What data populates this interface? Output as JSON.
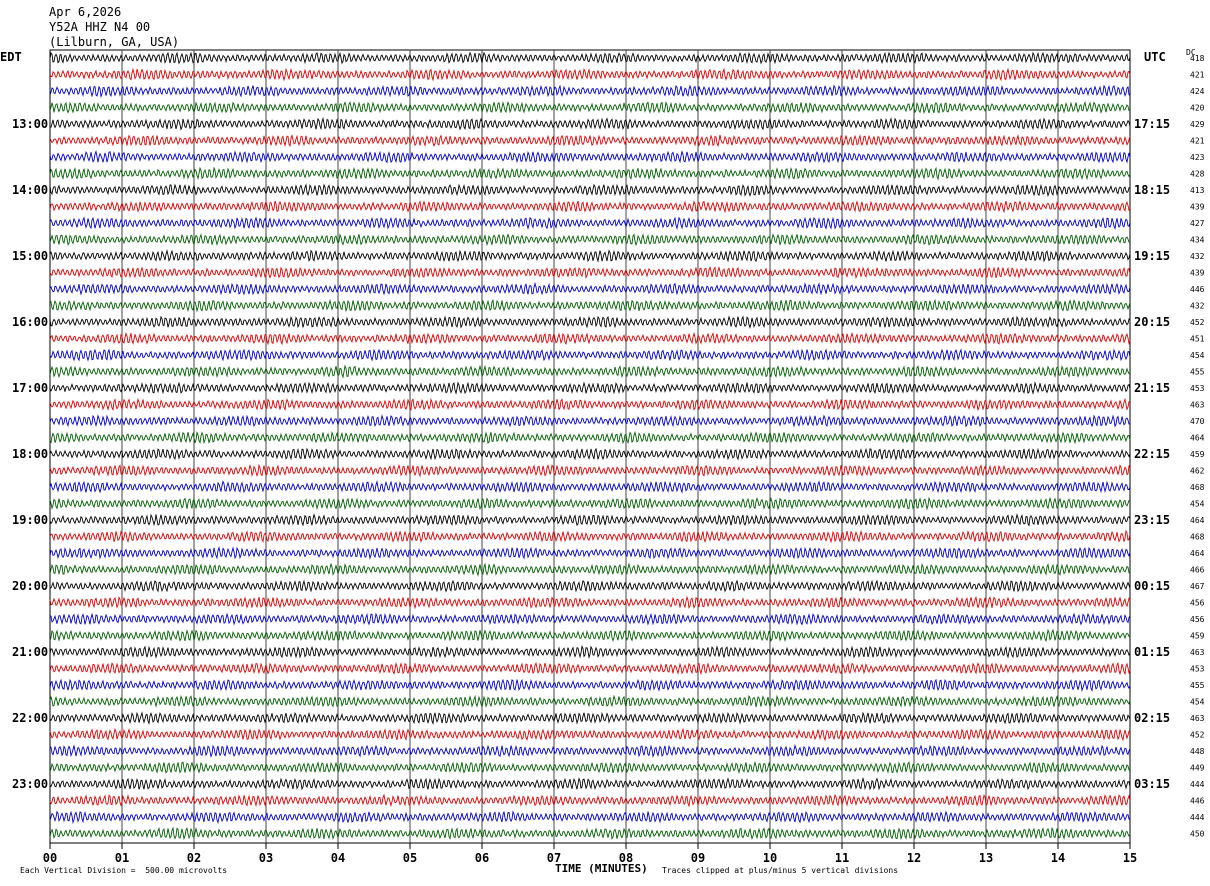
{
  "header": {
    "date": "Apr 6,2026",
    "station": "Y52A HHZ N4 00",
    "location": "(Lilburn, GA, USA)"
  },
  "chart_data": {
    "type": "line",
    "title": "Apr 6,2026 Y52A HHZ N4 00 (Lilburn, GA, USA)",
    "left_axis_title": "EDT",
    "right_axis_title": "UTC",
    "dc_label": "DC",
    "xlabel": "TIME (MINUTES)",
    "xlim": [
      0,
      15
    ],
    "x_ticks": [
      "00",
      "01",
      "02",
      "03",
      "04",
      "05",
      "06",
      "07",
      "08",
      "09",
      "10",
      "11",
      "12",
      "13",
      "14",
      "15"
    ],
    "grid": true,
    "trace_colors": [
      "#000000",
      "#e00000",
      "#0000d0",
      "#006000"
    ],
    "left_hour_labels": [
      "13:00",
      "14:00",
      "15:00",
      "16:00",
      "17:00",
      "18:00",
      "19:00",
      "20:00",
      "21:00",
      "22:00",
      "23:00"
    ],
    "right_hour_labels": [
      "17:15",
      "18:15",
      "19:15",
      "20:15",
      "21:15",
      "22:15",
      "23:15",
      "00:15",
      "01:15",
      "02:15",
      "03:15"
    ],
    "first_labeled_row": 4,
    "dc_offsets": [
      418,
      421,
      424,
      420,
      429,
      421,
      423,
      428,
      413,
      439,
      427,
      434,
      432,
      439,
      446,
      432,
      452,
      451,
      454,
      455,
      453,
      463,
      470,
      464,
      459,
      462,
      468,
      454,
      464,
      468,
      464,
      466,
      467,
      456,
      456,
      459,
      463,
      453,
      455,
      454,
      463,
      452,
      448,
      449,
      444,
      446,
      444,
      450
    ],
    "footnote_left": "Each Vertical Division =  500.00 microvolts",
    "footnote_right": "Traces clipped at plus/minus 5 vertical divisions"
  }
}
